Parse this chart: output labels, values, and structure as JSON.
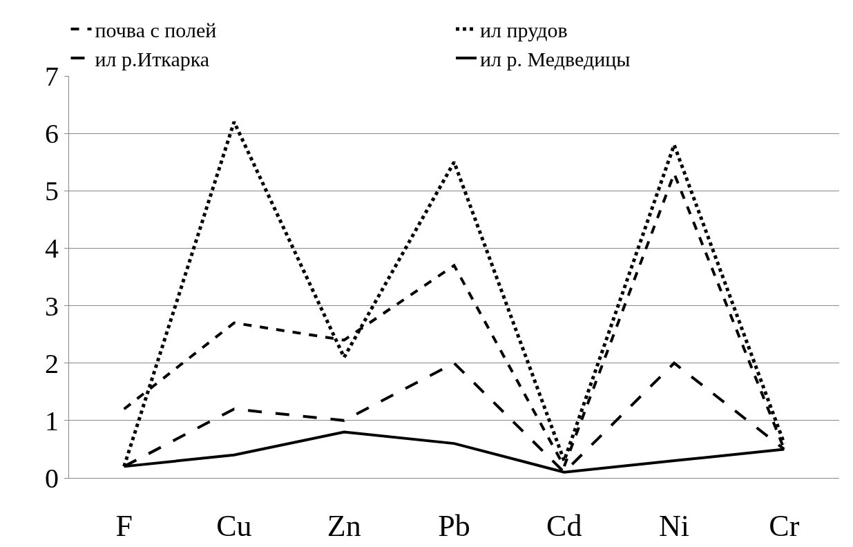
{
  "chart_data": {
    "type": "line",
    "categories": [
      "F",
      "Cu",
      "Zn",
      "Pb",
      "Cd",
      "Ni",
      "Cr"
    ],
    "series": [
      {
        "name": "почва с полей",
        "color": "#000000",
        "line_style": "dashed",
        "values": [
          1.2,
          2.7,
          2.4,
          3.7,
          0.2,
          5.3,
          0.5
        ]
      },
      {
        "name": "ил прудов",
        "color": "#000000",
        "line_style": "dotted",
        "values": [
          0.2,
          6.2,
          2.1,
          5.5,
          0.3,
          5.8,
          0.6
        ]
      },
      {
        "name": "ил р.Иткарка",
        "color": "#000000",
        "line_style": "dashed",
        "values": [
          0.2,
          1.2,
          1.0,
          2.0,
          0.1,
          2.0,
          0.5
        ]
      },
      {
        "name": "ил р. Медведицы",
        "color": "#000000",
        "line_style": "solid",
        "values": [
          0.2,
          0.4,
          0.8,
          0.6,
          0.1,
          0.3,
          0.5
        ]
      }
    ],
    "ylim": [
      0,
      7
    ],
    "yticks": [
      0,
      1,
      2,
      3,
      4,
      5,
      6,
      7
    ],
    "grid": "y",
    "legend": "top",
    "marker": "none"
  }
}
